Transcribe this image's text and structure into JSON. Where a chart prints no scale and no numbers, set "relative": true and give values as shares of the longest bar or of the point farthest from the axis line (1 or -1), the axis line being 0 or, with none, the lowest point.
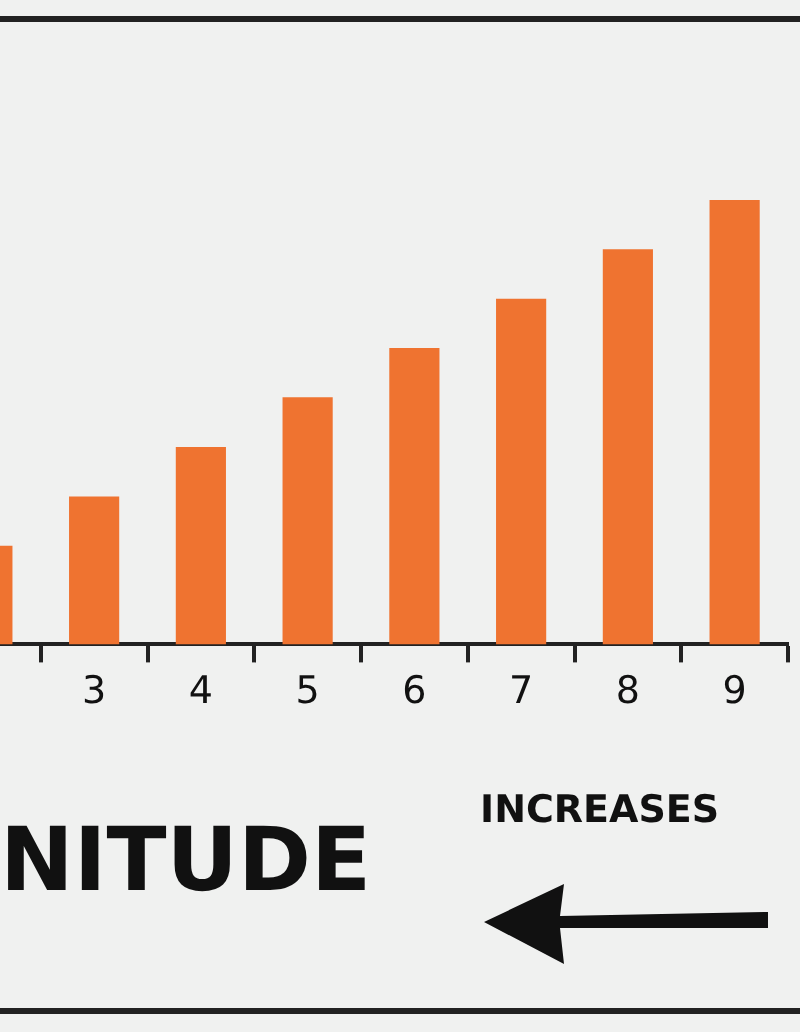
{
  "chart_data": {
    "type": "bar",
    "categories": [
      null,
      "3",
      "4",
      "5",
      "6",
      "7",
      "8",
      "9"
    ],
    "values": [
      0.222,
      0.333,
      0.444,
      0.556,
      0.667,
      0.778,
      0.889,
      1
    ],
    "color": "#ef7330",
    "relative": true,
    "legend": false,
    "annotations": [
      "NITUDE",
      "INCREASES"
    ]
  }
}
